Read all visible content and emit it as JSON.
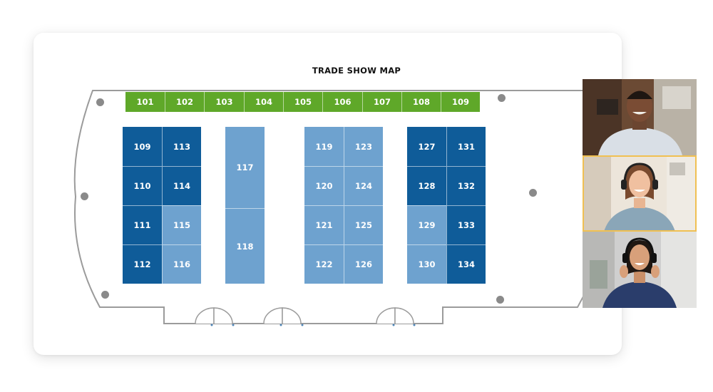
{
  "map": {
    "title": "TRADE SHOW MAP",
    "top_row": [
      "101",
      "102",
      "103",
      "104",
      "105",
      "106",
      "107",
      "108",
      "109"
    ],
    "block_a": [
      "109",
      "113",
      "110",
      "114",
      "111",
      "115",
      "112",
      "116"
    ],
    "block_b": [
      "117",
      "118"
    ],
    "block_c": [
      "119",
      "123",
      "120",
      "124",
      "121",
      "125",
      "122",
      "126"
    ],
    "block_d": [
      "127",
      "131",
      "128",
      "132",
      "129",
      "133",
      "130",
      "134"
    ]
  },
  "colors": {
    "green": "#5fa829",
    "dark_blue": "#0f5c99",
    "light_blue": "#6ea2cf",
    "active_tile_border": "#f0c052"
  },
  "video_call": {
    "participants": [
      {
        "icon": "man-avatar-icon"
      },
      {
        "icon": "woman-headset-avatar-icon",
        "active": true
      },
      {
        "icon": "woman-headset-avatar-icon"
      }
    ]
  }
}
